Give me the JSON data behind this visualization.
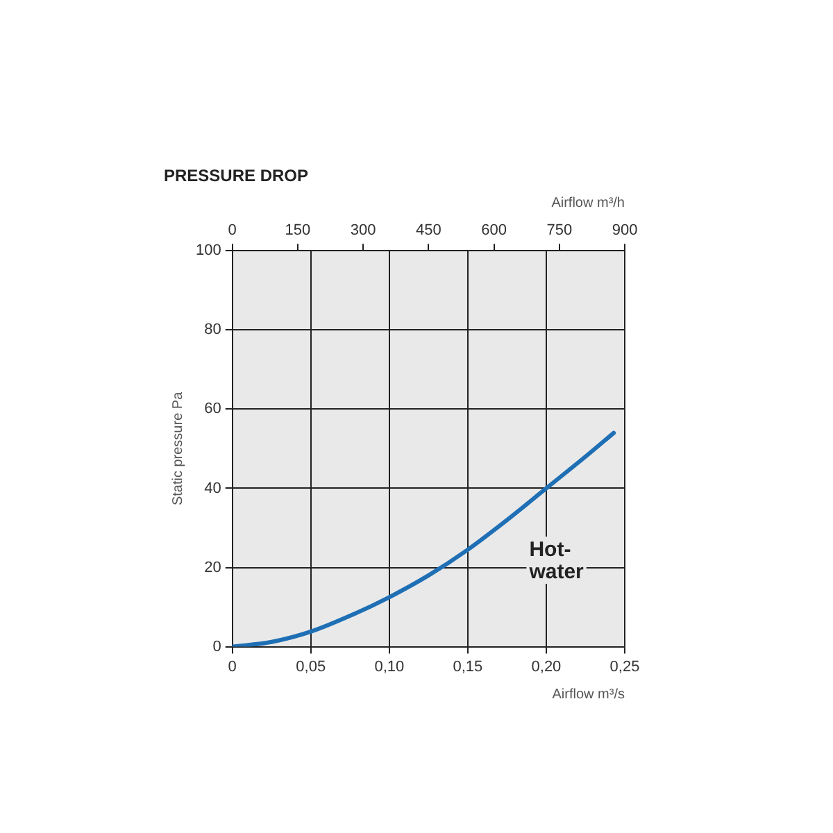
{
  "chart_data": {
    "type": "line",
    "title": "PRESSURE DROP",
    "xlabel": "Airflow m³/s",
    "x2label": "Airflow m³/h",
    "ylabel": "Static pressure Pa",
    "x": [
      0,
      0.025,
      0.05,
      0.075,
      0.1,
      0.125,
      0.15,
      0.175,
      0.2,
      0.225,
      0.243
    ],
    "series": [
      {
        "name": "Hot-\nwater",
        "color": "#1f6fb5",
        "values": [
          0,
          1.2,
          3.8,
          7.8,
          12.5,
          18,
          24.5,
          32,
          40,
          48,
          54
        ]
      }
    ],
    "xlim": [
      0,
      0.25
    ],
    "xticks": [
      0,
      {
        "value": 0.05,
        "label": "0,05"
      },
      {
        "value": 0.1,
        "label": "0,10"
      },
      {
        "value": 0.15,
        "label": "0,15"
      },
      {
        "value": 0.2,
        "label": "0,20"
      },
      {
        "value": 0.25,
        "label": "0,25"
      }
    ],
    "x2lim": [
      0,
      900
    ],
    "x2ticks": [
      0,
      150,
      300,
      450,
      600,
      750,
      900
    ],
    "ylim": [
      0,
      100
    ],
    "yticks": [
      0,
      20,
      40,
      60,
      80,
      100
    ],
    "grid": true,
    "legend": false,
    "marker": "none",
    "line_style": "solid"
  }
}
